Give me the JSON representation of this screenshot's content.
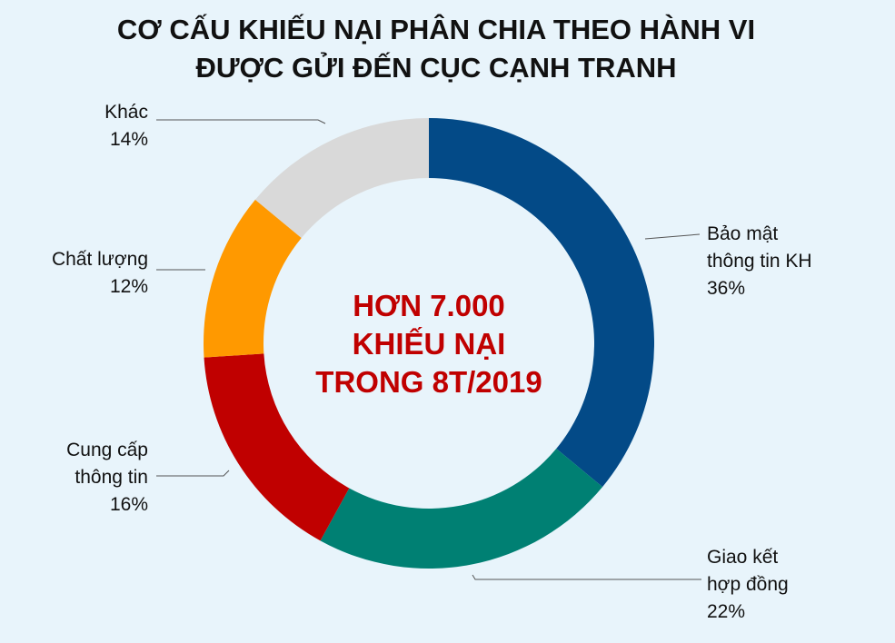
{
  "title": {
    "line1": "CƠ CẤU KHIẾU NẠI PHÂN CHIA THEO HÀNH VI",
    "line2": "ĐƯỢC GỬI ĐẾN CỤC CẠNH TRANH"
  },
  "center": {
    "line1": "HƠN 7.000",
    "line2": "KHIẾU NẠI",
    "line3": "TRONG 8T/2019"
  },
  "chart_data": {
    "type": "pie",
    "variant": "donut",
    "unit": "%",
    "slices": [
      {
        "label_lines": [
          "Bảo mật",
          "thông tin KH"
        ],
        "value": 36,
        "value_label": "36%",
        "color": "#034a87"
      },
      {
        "label_lines": [
          "Giao kết",
          "hợp đồng"
        ],
        "value": 22,
        "value_label": "22%",
        "color": "#008073"
      },
      {
        "label_lines": [
          "Cung cấp",
          "thông tin"
        ],
        "value": 16,
        "value_label": "16%",
        "color": "#c00000"
      },
      {
        "label_lines": [
          "Chất lượng"
        ],
        "value": 12,
        "value_label": "12%",
        "color": "#ff9900"
      },
      {
        "label_lines": [
          "Khác"
        ],
        "value": 14,
        "value_label": "14%",
        "color": "#d9d9d9"
      }
    ]
  }
}
